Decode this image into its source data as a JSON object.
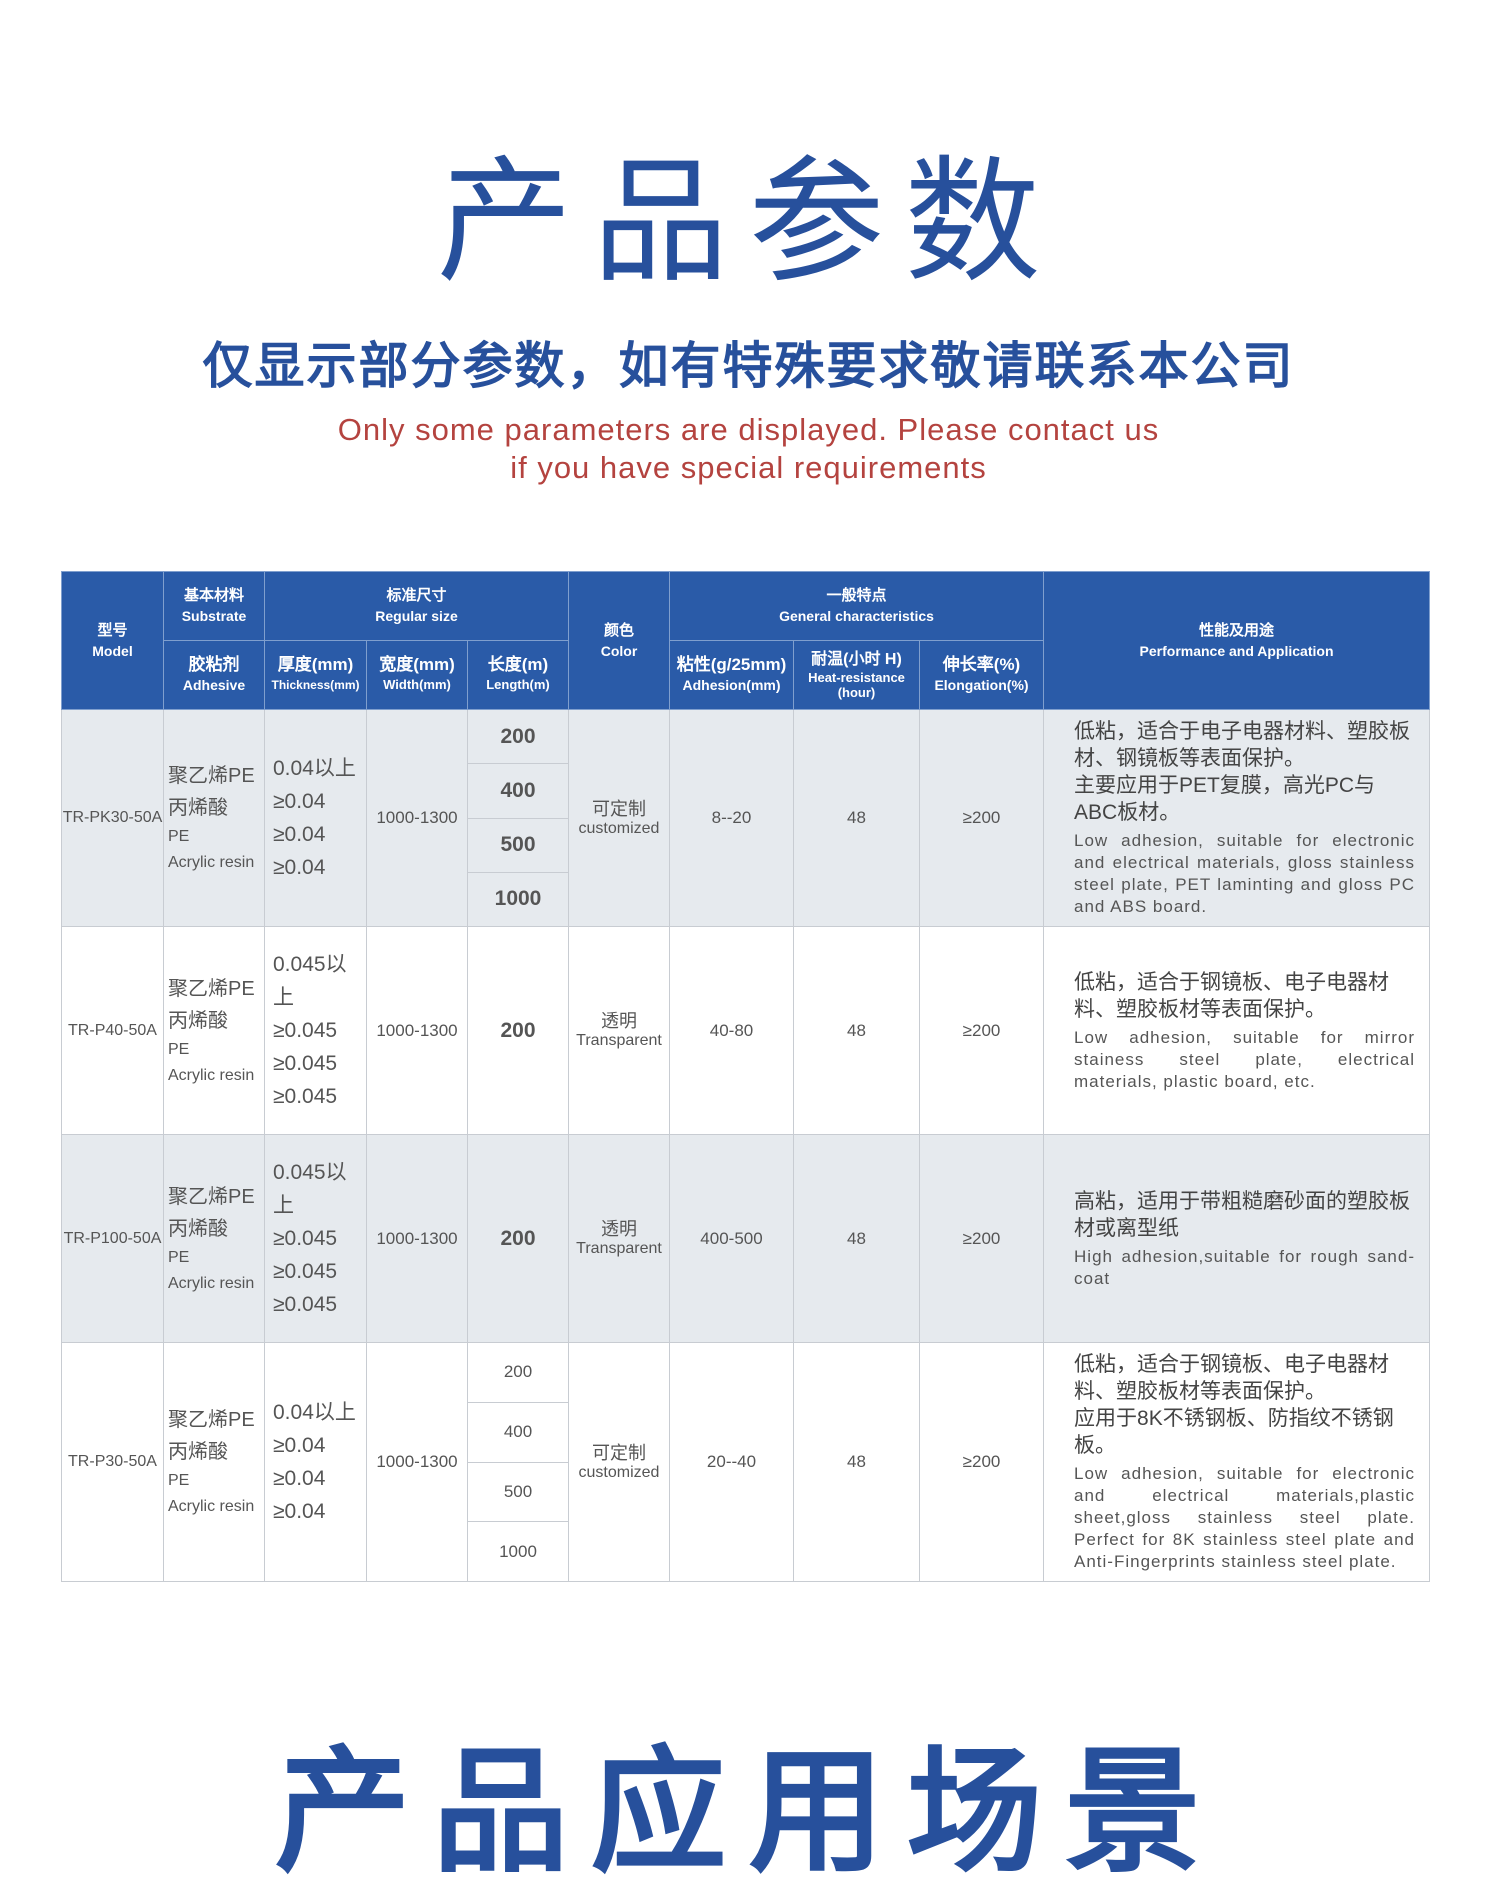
{
  "title": "产品参数",
  "subtitle_cn": "仅显示部分参数，如有特殊要求敬请联系本公司",
  "subtitle_en": [
    "Only some parameters are displayed. Please contact us",
    "if you have special requirements"
  ],
  "section2_title": "产品应用场景",
  "colors": {
    "title_blue": "#27509c",
    "subtitle_red": "#b4433f",
    "header_bg": "#2a5ba8",
    "row_gray": "#e6eaee"
  },
  "table": {
    "headers": {
      "model": [
        "型号",
        "Model"
      ],
      "substrate": [
        "基本材料",
        "Substrate"
      ],
      "regular_size": [
        "标准尺寸",
        "Regular size"
      ],
      "color": [
        "颜色",
        "Color"
      ],
      "general": [
        "一般特点",
        "General characteristics"
      ],
      "performance": [
        "性能及用途",
        "Performance and Application"
      ],
      "adhesive": [
        "胶粘剂",
        "Adhesive"
      ],
      "thickness": [
        "厚度(mm)",
        "Thickness(mm)"
      ],
      "width": [
        "宽度(mm)",
        "Width(mm)"
      ],
      "length": [
        "长度(m)",
        "Length(m)"
      ],
      "adhesion": [
        "粘性(g/25mm)",
        "Adhesion(mm)"
      ],
      "heat": [
        "耐温(小时 H)",
        "Heat-resistance",
        "(hour)"
      ],
      "elongation": [
        "伸长率(%)",
        "Elongation(%)"
      ]
    },
    "rows": [
      {
        "model": "TR-PK30-50A",
        "material": [
          "聚乙烯PE",
          "丙烯酸",
          "PE",
          "Acrylic resin"
        ],
        "thickness": [
          "0.04以上",
          "≥0.04",
          "≥0.04",
          "≥0.04"
        ],
        "width": "1000-1300",
        "length": [
          "200",
          "400",
          "500",
          "1000"
        ],
        "color": [
          "可定制",
          "customized"
        ],
        "adhesion": "8--20",
        "heat": "48",
        "elongation": "≥200",
        "perf_cn": [
          "低粘，适合于电子电器材料、塑胶板材、钢镜板等表面保护。",
          "主要应用于PET复膜，高光PC与ABC板材。"
        ],
        "perf_en": "Low adhesion, suitable for electronic and electrical materials, gloss stainless steel plate, PET laminting and gloss PC and ABS board."
      },
      {
        "model": "TR-P40-50A",
        "material": [
          "聚乙烯PE",
          "丙烯酸",
          "PE",
          "Acrylic resin"
        ],
        "thickness": [
          "0.045以上",
          "≥0.045",
          "≥0.045",
          "≥0.045"
        ],
        "width": "1000-1300",
        "length": [
          "200"
        ],
        "color": [
          "透明",
          "Transparent"
        ],
        "adhesion": "40-80",
        "heat": "48",
        "elongation": "≥200",
        "perf_cn": [
          "低粘，适合于钢镜板、电子电器材料、塑胶板材等表面保护。"
        ],
        "perf_en": "Low adhesion, suitable for mirror stainess steel plate, electrical materials, plastic board, etc."
      },
      {
        "model": "TR-P100-50A",
        "material": [
          "聚乙烯PE",
          "丙烯酸",
          "PE",
          "Acrylic resin"
        ],
        "thickness": [
          "0.045以上",
          "≥0.045",
          "≥0.045",
          "≥0.045"
        ],
        "width": "1000-1300",
        "length": [
          "200"
        ],
        "color": [
          "透明",
          "Transparent"
        ],
        "adhesion": "400-500",
        "heat": "48",
        "elongation": "≥200",
        "perf_cn": [
          "高粘，适用于带粗糙磨砂面的塑胶板材或离型纸"
        ],
        "perf_en": "High adhesion,suitable for rough sand-coat"
      },
      {
        "model": "TR-P30-50A",
        "material": [
          "聚乙烯PE",
          "丙烯酸",
          "PE",
          "Acrylic resin"
        ],
        "thickness": [
          "0.04以上",
          "≥0.04",
          "≥0.04",
          "≥0.04"
        ],
        "width": "1000-1300",
        "length": [
          "200",
          "400",
          "500",
          "1000"
        ],
        "color": [
          "可定制",
          "customized"
        ],
        "adhesion": "20--40",
        "heat": "48",
        "elongation": "≥200",
        "perf_cn": [
          "低粘，适合于钢镜板、电子电器材料、塑胶板材等表面保护。",
          "应用于8K不锈钢板、防指纹不锈钢板。"
        ],
        "perf_en": "Low adhesion, suitable for electronic and electrical materials,plastic sheet,gloss stainless steel plate. Perfect for 8K stainless steel plate and Anti-Fingerprints stainless steel plate."
      }
    ]
  }
}
